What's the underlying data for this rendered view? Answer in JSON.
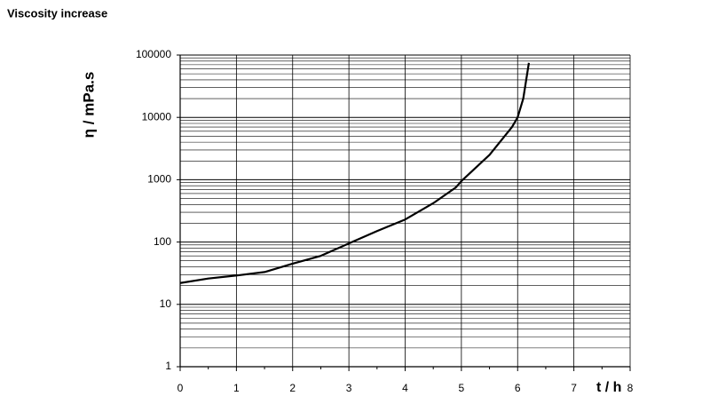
{
  "chart_data": {
    "type": "line",
    "title": "Viscosity increase",
    "y_label": "η / mPa.s",
    "x_label": "t / h",
    "x": [
      0,
      0.5,
      1,
      1.5,
      2,
      2.5,
      3,
      3.5,
      4,
      4.5,
      4.9,
      5,
      5.5,
      5.9,
      6,
      6.1,
      6.2
    ],
    "series": [
      {
        "name": "Viscosity",
        "color": "#000000",
        "values": [
          22,
          26,
          29,
          33,
          45,
          60,
          95,
          150,
          230,
          420,
          750,
          950,
          2500,
          7000,
          10000,
          20000,
          75000
        ]
      }
    ],
    "xlim": [
      0,
      8
    ],
    "xticks": [
      0,
      1,
      2,
      3,
      4,
      5,
      6,
      7,
      8
    ],
    "ylim": [
      1,
      100000
    ],
    "yticks": [
      1,
      10,
      100,
      1000,
      10000,
      100000
    ],
    "ylog": true,
    "grid": true,
    "minor_grid": true,
    "legend": false
  }
}
